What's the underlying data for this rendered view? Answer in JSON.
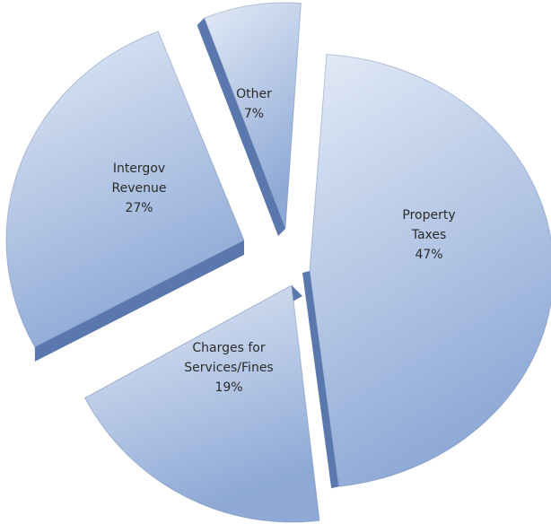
{
  "chart_data": {
    "type": "pie",
    "style": "exploded-3d",
    "slices": [
      {
        "label_lines": [
          "Property",
          "Taxes"
        ],
        "percent_label": "47%",
        "value": 47
      },
      {
        "label_lines": [
          "Charges for",
          "Services/Fines"
        ],
        "percent_label": "19%",
        "value": 19
      },
      {
        "label_lines": [
          "Intergov",
          "Revenue"
        ],
        "percent_label": "27%",
        "value": 27
      },
      {
        "label_lines": [
          "Other"
        ],
        "percent_label": "7%",
        "value": 7
      }
    ],
    "colors": {
      "face_light": "#e2eaf6",
      "face_dark": "#8ea9d6",
      "side": "#5a78ad",
      "edge": "#4d6a9e"
    },
    "legend": "none",
    "grid": false
  }
}
